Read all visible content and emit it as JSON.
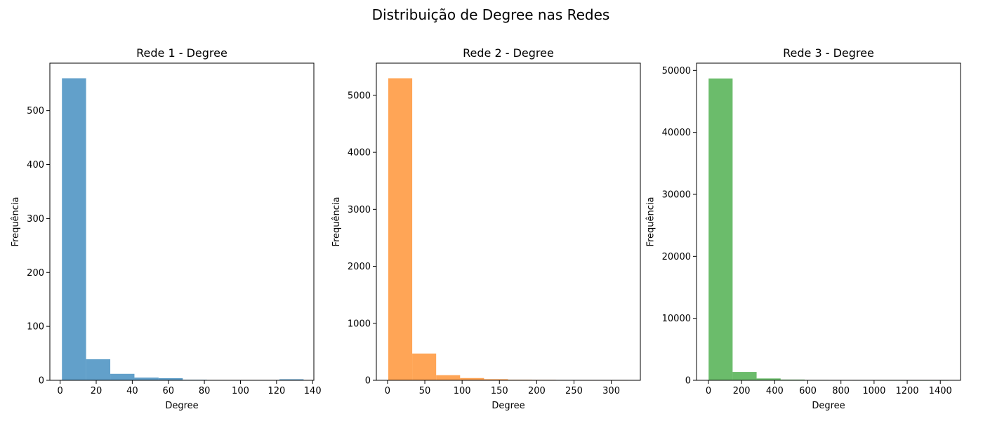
{
  "figure": {
    "suptitle": "Distribuição de Degree nas Redes"
  },
  "chart_data": [
    {
      "type": "bar",
      "title": "Rede 1 - Degree",
      "xlabel": "Degree",
      "ylabel": "Frequência",
      "color": "#1f77b4",
      "xlim": [
        -5.7,
        140.7
      ],
      "ylim": [
        0,
        588
      ],
      "xticks": [
        0,
        20,
        40,
        60,
        80,
        100,
        120,
        140
      ],
      "yticks": [
        0,
        100,
        200,
        300,
        400,
        500
      ],
      "bin_edges": [
        1,
        14.4,
        27.8,
        41.2,
        54.6,
        68,
        81.4,
        94.8,
        108.2,
        121.6,
        135
      ],
      "values": [
        560,
        39,
        12,
        5,
        4,
        1,
        0,
        0,
        0,
        2
      ]
    },
    {
      "type": "bar",
      "title": "Rede 2 - Degree",
      "xlabel": "Degree",
      "ylabel": "Frequência",
      "color": "#ff7f0e",
      "xlim": [
        -15,
        339
      ],
      "ylim": [
        0,
        5565
      ],
      "xticks": [
        0,
        50,
        100,
        150,
        200,
        250,
        300
      ],
      "yticks": [
        0,
        1000,
        2000,
        3000,
        4000,
        5000
      ],
      "bin_edges": [
        1,
        33.1,
        65.2,
        97.3,
        129.4,
        161.5,
        193.6,
        225.7,
        257.8,
        289.9,
        322
      ],
      "values": [
        5300,
        470,
        90,
        40,
        20,
        10,
        8,
        5,
        1,
        1
      ]
    },
    {
      "type": "bar",
      "title": "Rede 3 - Degree",
      "xlabel": "Degree",
      "ylabel": "Frequência",
      "color": "#2ca02c",
      "xlim": [
        -72,
        1522
      ],
      "ylim": [
        0,
        51170
      ],
      "xticks": [
        0,
        200,
        400,
        600,
        800,
        1000,
        1200,
        1400
      ],
      "yticks": [
        0,
        10000,
        20000,
        30000,
        40000,
        50000
      ],
      "bin_edges": [
        1,
        145.9,
        290.8,
        435.7,
        580.6,
        725.5,
        870.4,
        1015.3,
        1160.2,
        1305.1,
        1450
      ],
      "values": [
        48700,
        1350,
        300,
        120,
        60,
        20,
        10,
        5,
        3,
        2
      ]
    }
  ]
}
